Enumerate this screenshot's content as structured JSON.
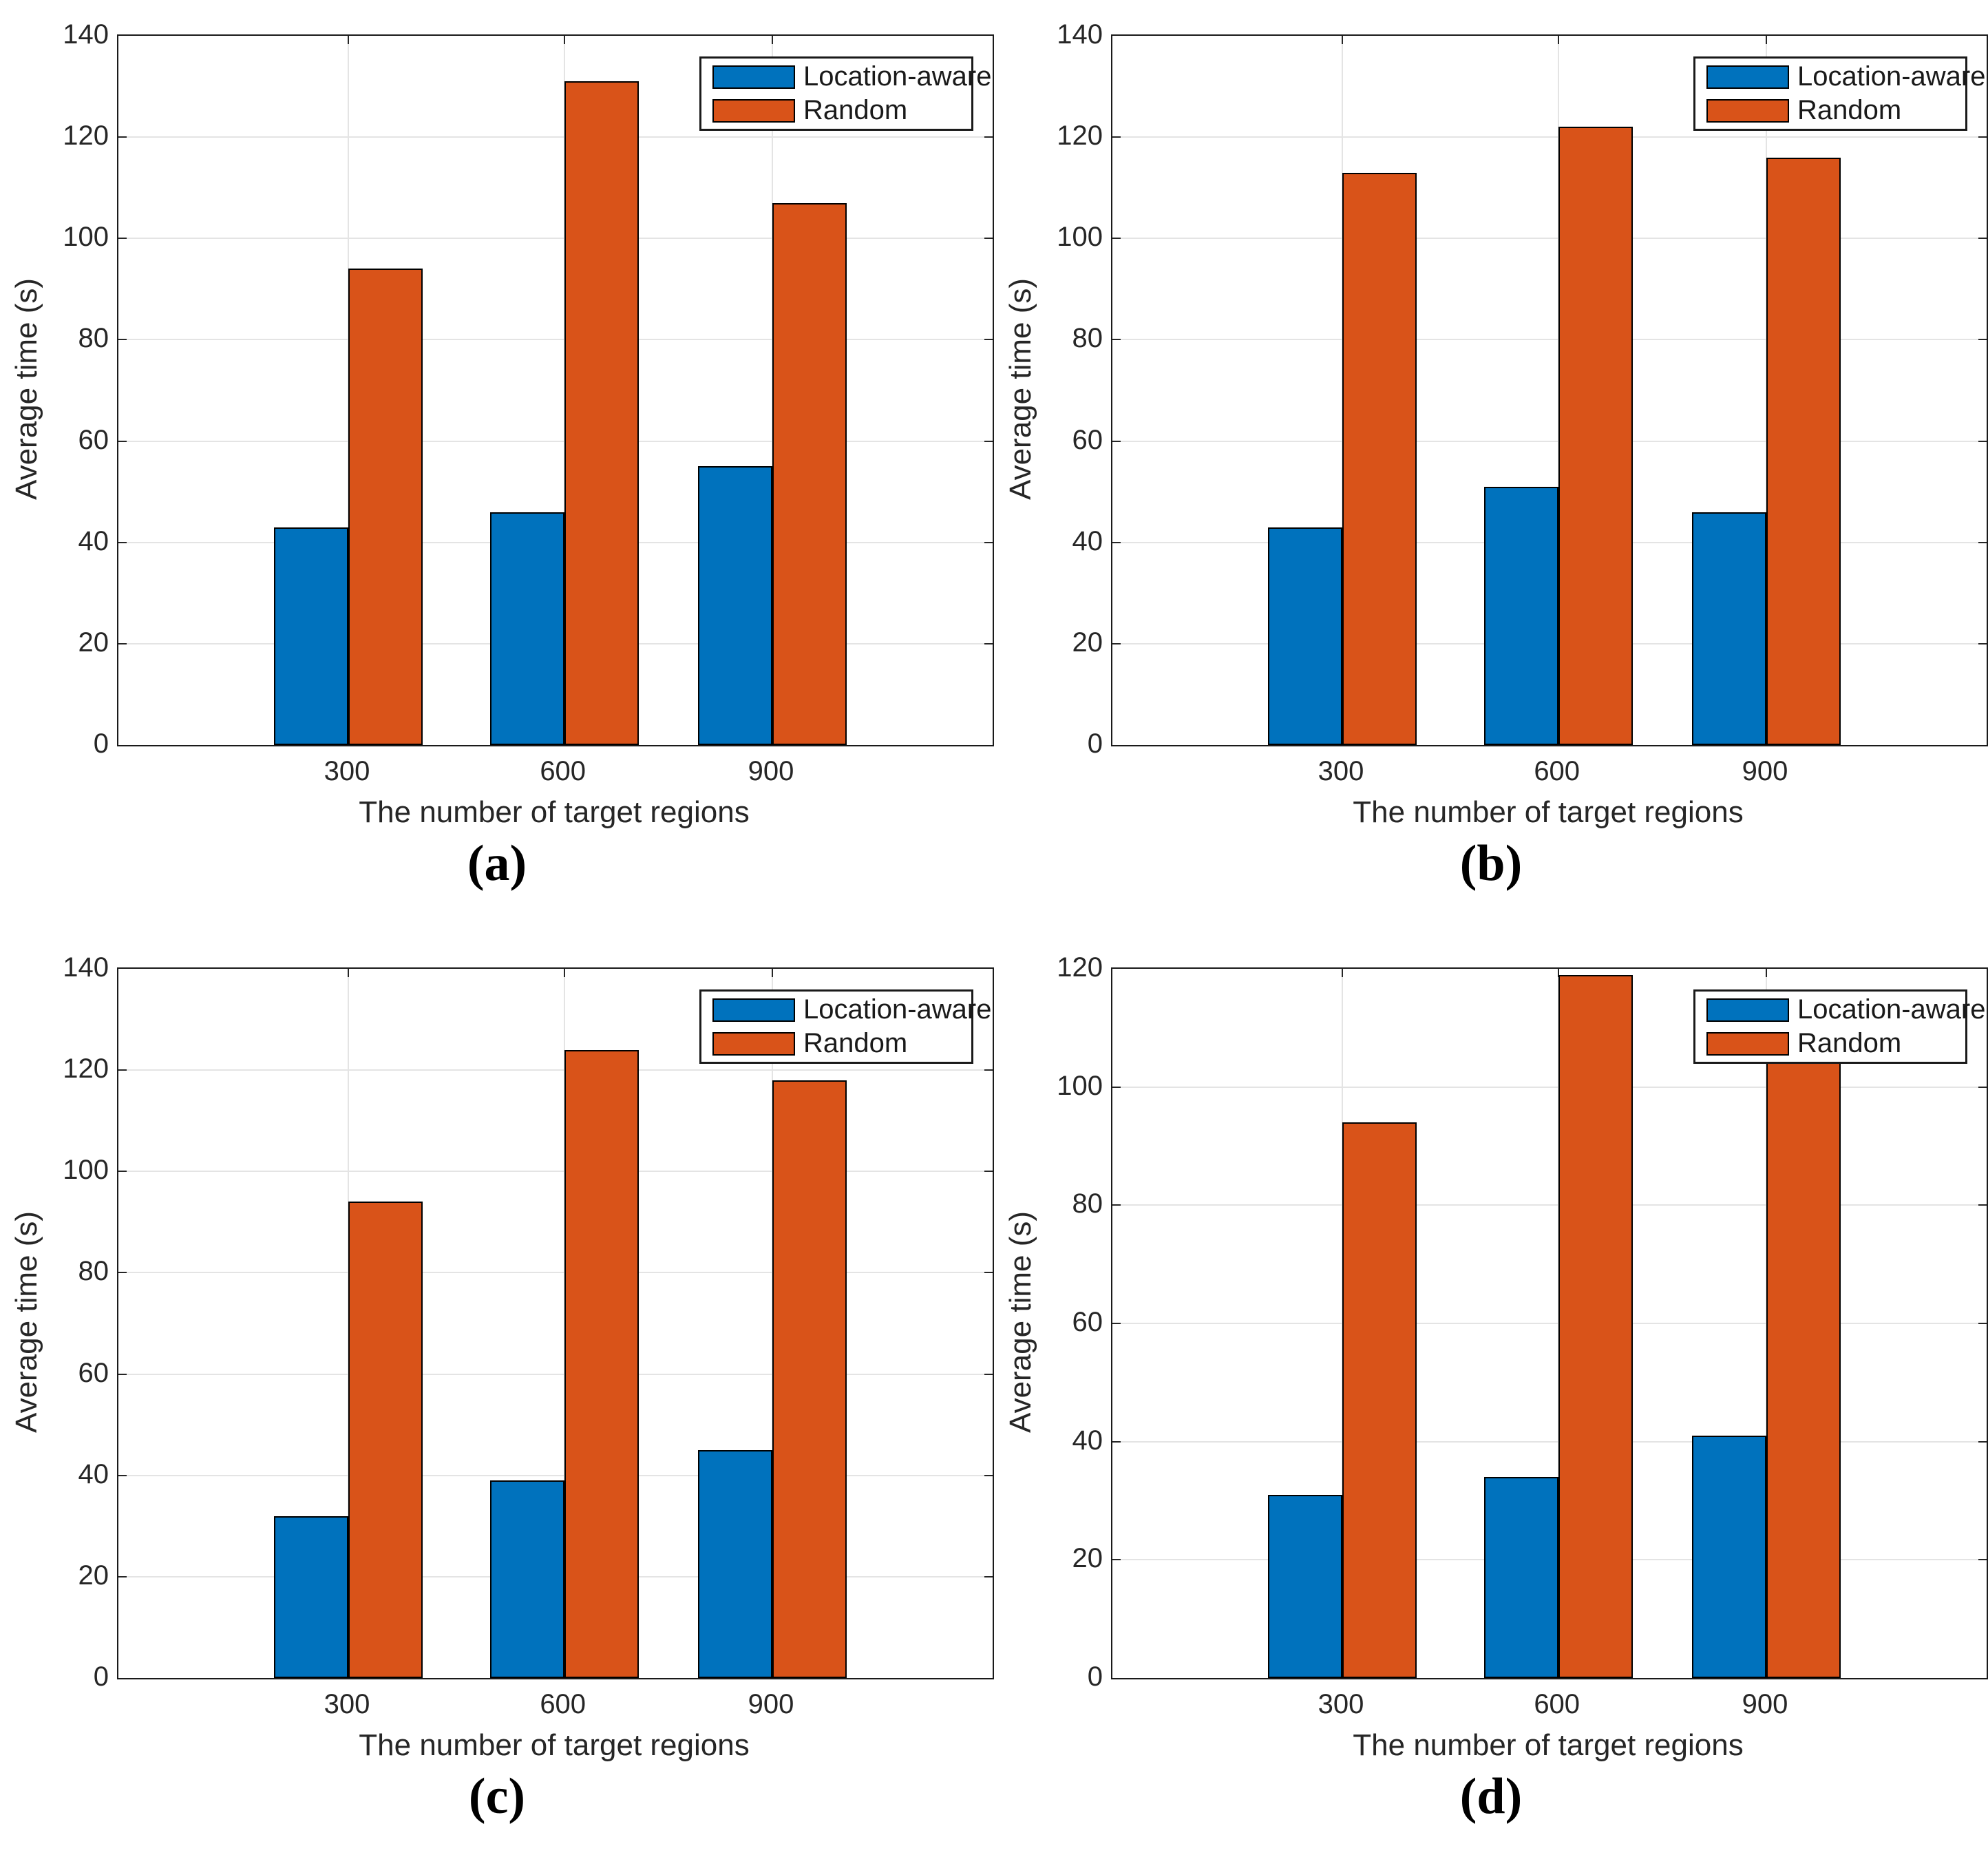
{
  "figure": {
    "ylabel": "Average time (s)",
    "xlabel": "The number of target regions",
    "categories": [
      "300",
      "600",
      "900"
    ],
    "legend": {
      "series1_label": "Location-aware",
      "series2_label": "Random"
    },
    "colors": {
      "location_aware": "#0072BD",
      "random": "#D95319",
      "axis": "#1a1a1a",
      "grid": "#e4e4e4",
      "bar_edge": "#000000"
    }
  },
  "chart_data": [
    {
      "type": "bar",
      "panel_label": "(a)",
      "title": "",
      "xlabel": "The number of target regions",
      "ylabel": "Average time (s)",
      "categories": [
        "300",
        "600",
        "900"
      ],
      "ylim": [
        0,
        140
      ],
      "yticks": [
        0,
        20,
        40,
        60,
        80,
        100,
        120,
        140
      ],
      "grid": true,
      "legend_position": "top-right",
      "series": [
        {
          "name": "Location-aware",
          "color": "#0072BD",
          "values": [
            43,
            46,
            55
          ]
        },
        {
          "name": "Random",
          "color": "#D95319",
          "values": [
            94,
            131,
            107
          ]
        }
      ]
    },
    {
      "type": "bar",
      "panel_label": "(b)",
      "title": "",
      "xlabel": "The number of target regions",
      "ylabel": "Average time (s)",
      "categories": [
        "300",
        "600",
        "900"
      ],
      "ylim": [
        0,
        140
      ],
      "yticks": [
        0,
        20,
        40,
        60,
        80,
        100,
        120,
        140
      ],
      "grid": true,
      "legend_position": "top-right",
      "series": [
        {
          "name": "Location-aware",
          "color": "#0072BD",
          "values": [
            43,
            51,
            46
          ]
        },
        {
          "name": "Random",
          "color": "#D95319",
          "values": [
            113,
            122,
            116
          ]
        }
      ]
    },
    {
      "type": "bar",
      "panel_label": "(c)",
      "title": "",
      "xlabel": "The number of target regions",
      "ylabel": "Average time (s)",
      "categories": [
        "300",
        "600",
        "900"
      ],
      "ylim": [
        0,
        140
      ],
      "yticks": [
        0,
        20,
        40,
        60,
        80,
        100,
        120,
        140
      ],
      "grid": true,
      "legend_position": "top-right",
      "series": [
        {
          "name": "Location-aware",
          "color": "#0072BD",
          "values": [
            32,
            39,
            45
          ]
        },
        {
          "name": "Random",
          "color": "#D95319",
          "values": [
            94,
            124,
            118
          ]
        }
      ]
    },
    {
      "type": "bar",
      "panel_label": "(d)",
      "title": "",
      "xlabel": "The number of target regions",
      "ylabel": "Average time (s)",
      "categories": [
        "300",
        "600",
        "900"
      ],
      "ylim": [
        0,
        120
      ],
      "yticks": [
        0,
        20,
        40,
        60,
        80,
        100,
        120
      ],
      "grid": true,
      "legend_position": "top-right",
      "note_900_random": "top of bar hidden behind legend",
      "series": [
        {
          "name": "Location-aware",
          "color": "#0072BD",
          "values": [
            31,
            34,
            41
          ]
        },
        {
          "name": "Random",
          "color": "#D95319",
          "values": [
            94,
            119,
            112
          ]
        }
      ]
    }
  ]
}
